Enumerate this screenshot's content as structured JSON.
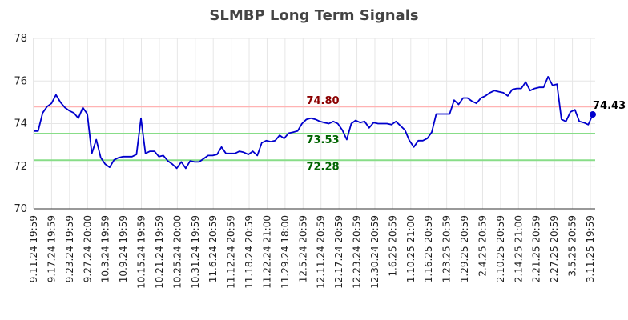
{
  "chart_data": {
    "type": "line",
    "title": "SLMBP Long Term Signals",
    "xlabel": "",
    "ylabel": "",
    "ylim": [
      70,
      78
    ],
    "y_ticks": [
      70,
      72,
      74,
      76,
      78
    ],
    "grid": true,
    "x_tick_labels": [
      "9.11.24 19:59",
      "9.17.24 19:59",
      "9.23.24 19:59",
      "9.27.24 20:00",
      "10.3.24 19:59",
      "10.9.24 19:59",
      "10.15.24 19:59",
      "10.21.24 19:59",
      "10.25.24 20:00",
      "10.31.24 19:59",
      "11.6.24 20:59",
      "11.12.24 20:59",
      "11.18.24 20:59",
      "11.22.24 21:00",
      "11.29.24 18:00",
      "12.5.24 20:59",
      "12.11.24 20:59",
      "12.17.24 20:59",
      "12.23.24 20:59",
      "12.30.24 20:59",
      "1.6.25 20:59",
      "1.10.25 21:00",
      "1.16.25 20:59",
      "1.23.25 20:59",
      "1.29.25 20:59",
      "2.4.25 20:59",
      "2.10.25 20:59",
      "2.14.25 21:00",
      "2.21.25 20:59",
      "2.27.25 20:59",
      "3.5.25 20:59",
      "3.11.25 19:59"
    ],
    "series": [
      {
        "color": "#0000cc",
        "values": [
          73.65,
          73.65,
          74.5,
          74.8,
          74.95,
          75.35,
          75.0,
          74.75,
          74.6,
          74.5,
          74.25,
          74.75,
          74.45,
          72.6,
          73.25,
          72.4,
          72.1,
          71.95,
          72.3,
          72.4,
          72.45,
          72.45,
          72.45,
          72.55,
          74.25,
          72.6,
          72.7,
          72.7,
          72.45,
          72.5,
          72.25,
          72.1,
          71.9,
          72.2,
          71.9,
          72.25,
          72.2,
          72.2,
          72.35,
          72.5,
          72.5,
          72.55,
          72.9,
          72.6,
          72.6,
          72.6,
          72.7,
          72.65,
          72.55,
          72.7,
          72.5,
          73.1,
          73.2,
          73.15,
          73.2,
          73.45,
          73.3,
          73.55,
          73.6,
          73.65,
          74.0,
          74.2,
          74.25,
          74.2,
          74.1,
          74.05,
          74.0,
          74.1,
          74.0,
          73.7,
          73.25,
          74.0,
          74.15,
          74.05,
          74.1,
          73.8,
          74.05,
          74.0,
          74.0,
          74.0,
          73.95,
          74.1,
          73.9,
          73.7,
          73.2,
          72.9,
          73.2,
          73.2,
          73.3,
          73.6,
          74.45,
          74.45,
          74.45,
          74.45,
          75.1,
          74.9,
          75.2,
          75.2,
          75.05,
          74.95,
          75.2,
          75.3,
          75.45,
          75.55,
          75.5,
          75.45,
          75.3,
          75.6,
          75.65,
          75.65,
          75.95,
          75.55,
          75.65,
          75.7,
          75.7,
          76.2,
          75.8,
          75.85,
          74.2,
          74.1,
          74.55,
          74.65,
          74.1,
          74.05,
          73.95,
          74.43
        ]
      }
    ],
    "reference_lines": [
      {
        "value": 74.8,
        "label": "74.80",
        "line_color": "#ffb3b3",
        "label_color": "#8b0000"
      },
      {
        "value": 73.53,
        "label": "73.53",
        "line_color": "#88dd88",
        "label_color": "#006400"
      },
      {
        "value": 72.28,
        "label": "72.28",
        "line_color": "#88dd88",
        "label_color": "#006400"
      }
    ],
    "last_value_label": "74.43"
  }
}
